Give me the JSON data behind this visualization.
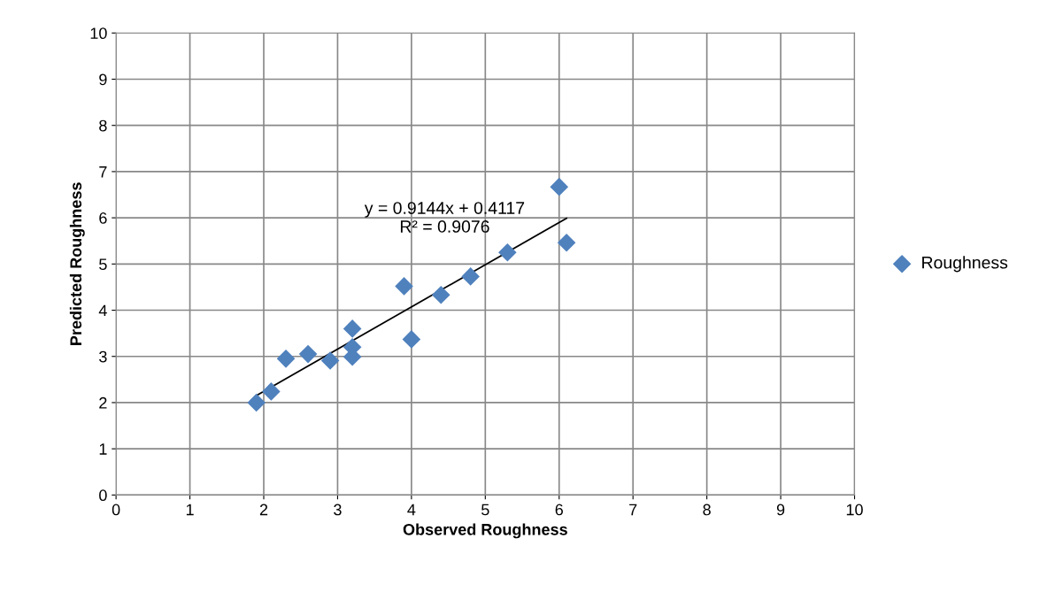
{
  "chart_data": {
    "type": "scatter",
    "xlabel": "Observed Roughness",
    "ylabel": "Predicted Roughness",
    "xlim": [
      0,
      10
    ],
    "ylim": [
      0,
      10
    ],
    "xticks": [
      0,
      1,
      2,
      3,
      4,
      5,
      6,
      7,
      8,
      9,
      10
    ],
    "yticks": [
      0,
      1,
      2,
      3,
      4,
      5,
      6,
      7,
      8,
      9,
      10
    ],
    "grid": true,
    "legend": "right",
    "series": [
      {
        "name": "Roughness",
        "color": "#4f81bd",
        "marker": "diamond",
        "x": [
          1.9,
          2.1,
          2.3,
          2.6,
          2.9,
          3.2,
          3.2,
          3.2,
          3.9,
          4.0,
          4.4,
          4.8,
          5.3,
          6.0,
          6.1
        ],
        "values": [
          2.0,
          2.24,
          2.95,
          3.05,
          2.91,
          3.6,
          3.2,
          2.99,
          4.52,
          3.37,
          4.33,
          4.73,
          5.25,
          6.67,
          5.46
        ]
      },
      {
        "type": "line",
        "marker": "none",
        "color": "#000000",
        "x": [
          1.9,
          6.1
        ],
        "values": [
          2.15,
          5.99
        ]
      }
    ],
    "annotations": [
      "y = 0.9144x + 0.4117\nR² = 0.9076"
    ]
  }
}
